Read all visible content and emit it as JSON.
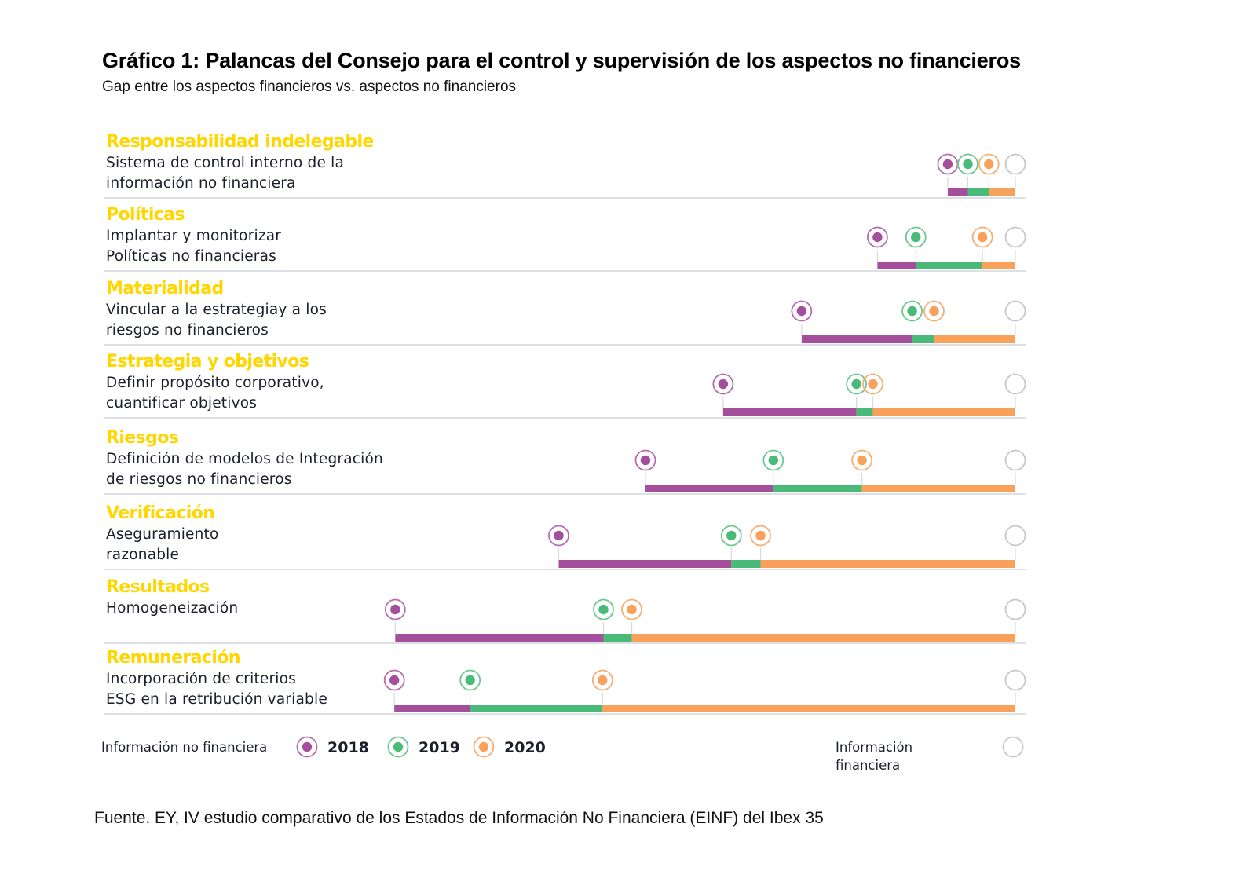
{
  "chart_data": {
    "type": "dumbbell-gap",
    "title": "Gráfico 1: Palancas del Consejo para el control y supervisión de los aspectos no financieros",
    "subtitle": "Gap entre los aspectos financieros vs. aspectos no financieros",
    "xlabel": "",
    "ylabel": "",
    "x_scale_note": "Relative position (0-100); 100 = Información financiera",
    "xlim": [
      0,
      100
    ],
    "grid": false,
    "legend_position": "bottom",
    "series": [
      {
        "name": "2018",
        "color": "#A34F9C",
        "ring_color": "#B56CB0"
      },
      {
        "name": "2019",
        "color": "#4ABA78",
        "ring_color": "#6CC793"
      },
      {
        "name": "2020",
        "color": "#F9A05A",
        "ring_color": "#F7AE73"
      },
      {
        "name": "Información financiera",
        "color": "#FFFFFF",
        "ring_color": "#C3C8CE"
      }
    ],
    "categories": [
      {
        "category": "Responsabilidad indelegable",
        "description": [
          "Sistema de control interno de la",
          "información no financiera"
        ],
        "values": {
          "2018": 92.6,
          "2019": 94.8,
          "2020": 97.1,
          "financiera": 100
        }
      },
      {
        "category": "Políticas",
        "description": [
          "Implantar y monitorizar",
          "Políticas no financieras"
        ],
        "values": {
          "2018": 84.9,
          "2019": 89.1,
          "2020": 96.4,
          "financiera": 100
        }
      },
      {
        "category": "Materialidad",
        "description": [
          "Vincular a la estrategiay a los",
          "riesgos no financieros"
        ],
        "values": {
          "2018": 76.6,
          "2019": 88.7,
          "2020": 91.1,
          "financiera": 100
        }
      },
      {
        "category": "Estrategia y objetivos",
        "description": [
          "Definir propósito corporativo,",
          "cuantificar objetivos"
        ],
        "values": {
          "2018": 68.0,
          "2019": 82.6,
          "2020": 84.4,
          "financiera": 100
        }
      },
      {
        "category": "Riesgos",
        "description": [
          "Definición de modelos de Integración",
          "de riesgos no financieros"
        ],
        "values": {
          "2018": 59.5,
          "2019": 73.5,
          "2020": 83.2,
          "financiera": 100
        }
      },
      {
        "category": "Verificación",
        "description": [
          "Aseguramiento",
          "razonable"
        ],
        "values": {
          "2018": 50.0,
          "2019": 68.9,
          "2020": 72.1,
          "financiera": 100
        }
      },
      {
        "category": "Resultados",
        "description": [
          "Homogeneización"
        ],
        "values": {
          "2018": 32.1,
          "2019": 54.9,
          "2020": 58.0,
          "financiera": 100
        }
      },
      {
        "category": "Remuneración",
        "description": [
          "Incorporación de criterios",
          "ESG en la retribución variable"
        ],
        "values": {
          "2018": 32.0,
          "2019": 40.3,
          "2020": 54.8,
          "financiera": 100
        }
      }
    ]
  },
  "legend": {
    "nonfinancial_label": "Información no financiera",
    "years": [
      "2018",
      "2019",
      "2020"
    ],
    "financial_label_lines": [
      "Información",
      "financiera"
    ]
  },
  "colors": {
    "category_text": "#FFD600",
    "separator": "#DDE1E5",
    "tick": "#D7DBE0"
  },
  "source": "Fuente. EY, IV estudio comparativo de los Estados de Información No Financiera (EINF) del Ibex 35"
}
